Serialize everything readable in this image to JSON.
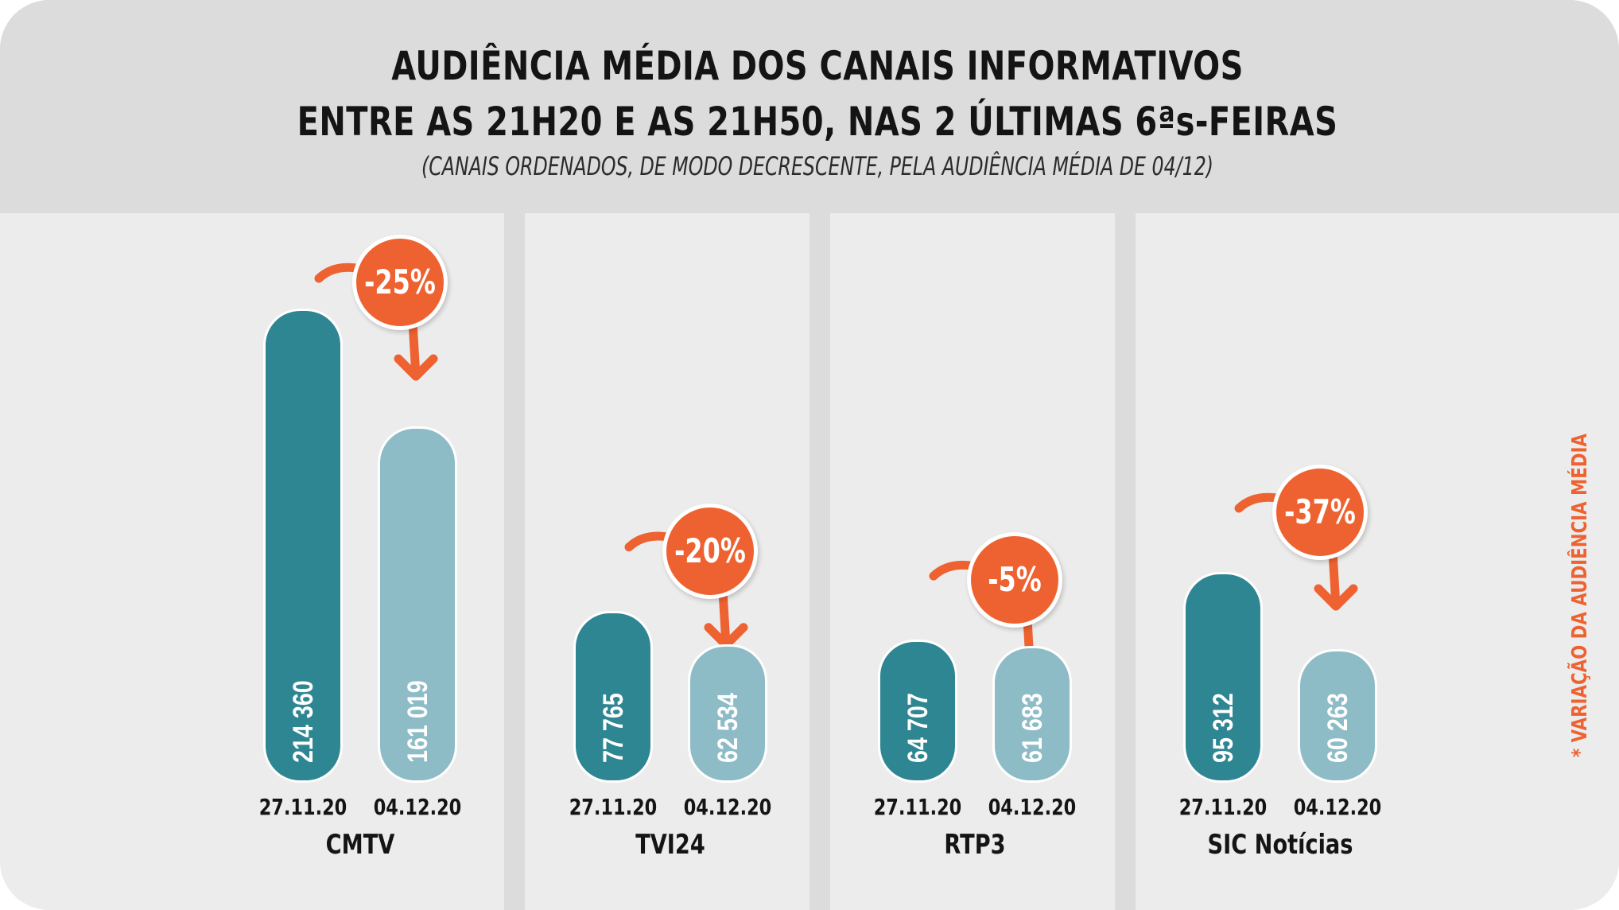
{
  "title": {
    "line1": "AUDIÊNCIA MÉDIA DOS CANAIS INFORMATIVOS",
    "line2": "ENTRE AS 21H20 E AS 21H50, NAS 2 ÚLTIMAS 6ªs-FEIRAS",
    "subtitle": "(CANAIS ORDENADOS, DE MODO DECRESCENTE, PELA AUDIÊNCIA MÉDIA DE 04/12)"
  },
  "side_note": "* VARIAÇÃO DA AUDIÊNCIA MÉDIA",
  "colors": {
    "date1": "#2e8693",
    "date2": "#8dbcc7",
    "variation": "#ee6231"
  },
  "chart_data": {
    "type": "bar",
    "title": "AUDIÊNCIA MÉDIA DOS CANAIS INFORMATIVOS ENTRE AS 21H20 E AS 21H50, NAS 2 ÚLTIMAS 6ªs-FEIRAS",
    "categories": [
      "CMTV",
      "TVI24",
      "RTP3",
      "SIC Notícias"
    ],
    "series_dates": [
      "27.11.20",
      "04.12.20"
    ],
    "series": [
      {
        "name": "27.11.20",
        "values": [
          214360,
          77765,
          64707,
          95312
        ],
        "labels": [
          "214 360",
          "77 765",
          "64 707",
          "95 312"
        ]
      },
      {
        "name": "04.12.20",
        "values": [
          161019,
          62534,
          61683,
          60263
        ],
        "labels": [
          "161 019",
          "62 534",
          "61 683",
          "60 263"
        ]
      }
    ],
    "variation_labels": [
      "-25%",
      "-20%",
      "-5%",
      "-37%"
    ],
    "variation_values": [
      -25,
      -20,
      -5,
      -37
    ],
    "xlabel": "",
    "ylabel": "",
    "ylim": [
      0,
      214360
    ],
    "grid": false,
    "legend": "none"
  }
}
